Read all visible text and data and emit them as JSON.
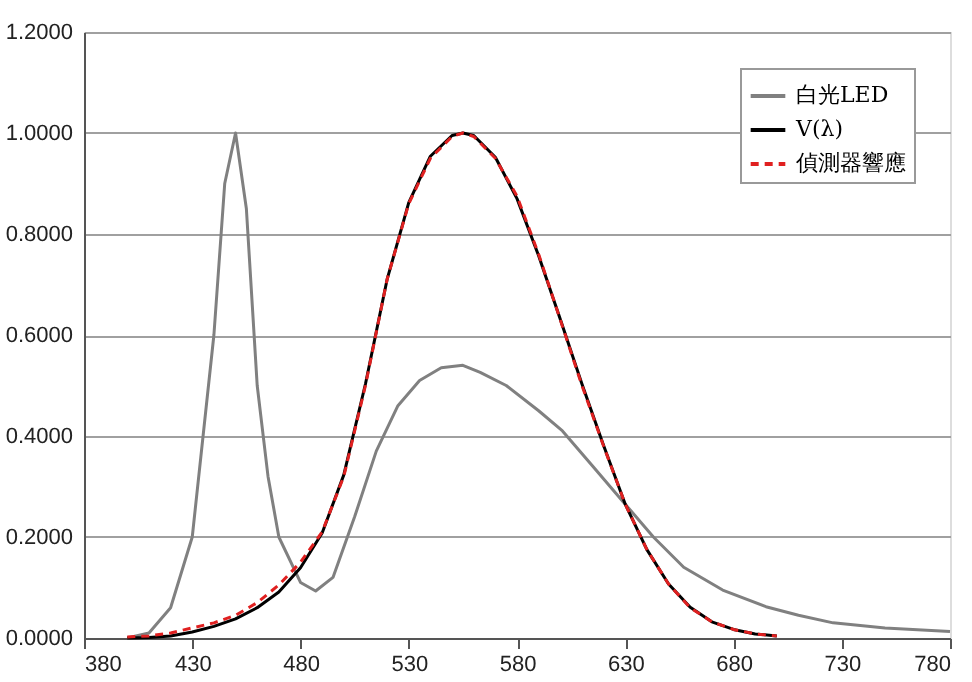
{
  "chart_data": {
    "type": "line",
    "xlim": [
      380,
      780
    ],
    "xticks": [
      380,
      430,
      480,
      530,
      580,
      630,
      680,
      730,
      780
    ],
    "ylim": [
      0,
      1.2
    ],
    "yticks": [
      {
        "value": 0,
        "label": "0.0000"
      },
      {
        "value": 0.2,
        "label": "0.2000"
      },
      {
        "value": 0.4,
        "label": "0.4000"
      },
      {
        "value": 0.6,
        "label": "0.6000"
      },
      {
        "value": 0.8,
        "label": "0.8000"
      },
      {
        "value": 1.0,
        "label": "1.0000"
      },
      {
        "value": 1.2,
        "label": "1.2000"
      }
    ],
    "grid": "y",
    "legend": "top right",
    "series": [
      {
        "name": "白光LED",
        "color": "#808080",
        "line_style": "solid",
        "x": [
          400,
          410,
          420,
          430,
          440,
          445,
          450,
          455,
          460,
          465,
          470,
          480,
          487,
          495,
          505,
          515,
          525,
          535,
          545,
          555,
          563,
          575,
          590,
          601,
          615,
          629,
          643,
          657,
          675,
          695,
          710,
          726,
          750,
          780
        ],
        "values": [
          0.0,
          0.01,
          0.06,
          0.2,
          0.6,
          0.9,
          1.0,
          0.85,
          0.5,
          0.32,
          0.2,
          0.11,
          0.093,
          0.12,
          0.24,
          0.37,
          0.46,
          0.51,
          0.535,
          0.54,
          0.526,
          0.5,
          0.45,
          0.41,
          0.34,
          0.27,
          0.2,
          0.14,
          0.095,
          0.062,
          0.045,
          0.03,
          0.02,
          0.013
        ]
      },
      {
        "name": "V(λ)",
        "color": "#000000",
        "line_style": "solid",
        "x": [
          400,
          410,
          420,
          430,
          440,
          450,
          460,
          470,
          480,
          490,
          500,
          510,
          520,
          530,
          540,
          550,
          555,
          560,
          570,
          580,
          590,
          600,
          610,
          620,
          630,
          640,
          650,
          660,
          670,
          680,
          690,
          700
        ],
        "values": [
          0.0,
          0.001,
          0.004,
          0.012,
          0.023,
          0.038,
          0.06,
          0.091,
          0.139,
          0.208,
          0.323,
          0.503,
          0.71,
          0.862,
          0.954,
          0.995,
          1.0,
          0.995,
          0.952,
          0.87,
          0.757,
          0.631,
          0.503,
          0.381,
          0.265,
          0.175,
          0.107,
          0.061,
          0.032,
          0.017,
          0.008,
          0.004
        ]
      },
      {
        "name": "偵測器響應",
        "color": "#e02020",
        "line_style": "dashed",
        "x": [
          400,
          410,
          420,
          430,
          440,
          450,
          460,
          470,
          480,
          490,
          500,
          510,
          520,
          530,
          540,
          550,
          555,
          560,
          570,
          580,
          590,
          600,
          610,
          620,
          630,
          640,
          650,
          660,
          670,
          680,
          690,
          700
        ],
        "values": [
          0.002,
          0.004,
          0.01,
          0.02,
          0.03,
          0.045,
          0.07,
          0.105,
          0.15,
          0.21,
          0.32,
          0.5,
          0.71,
          0.86,
          0.95,
          0.993,
          1.0,
          0.993,
          0.95,
          0.875,
          0.76,
          0.63,
          0.5,
          0.38,
          0.265,
          0.175,
          0.107,
          0.06,
          0.032,
          0.017,
          0.008,
          0.004
        ]
      }
    ]
  }
}
